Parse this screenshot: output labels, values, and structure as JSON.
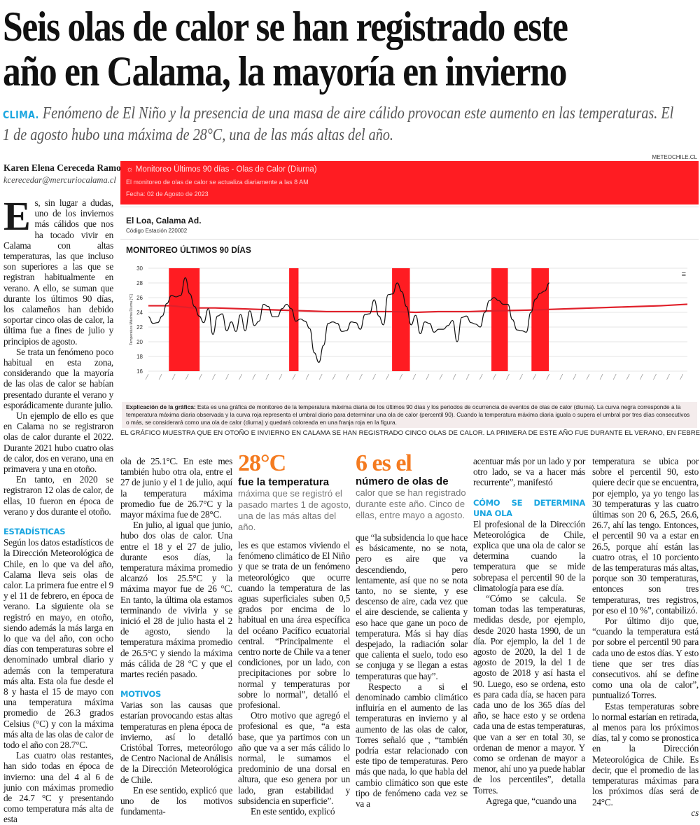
{
  "article": {
    "headline_line1": "Seis olas de calor se han registrado este",
    "headline_line2": "año en Calama, la mayoría en invierno",
    "kicker": "CLIMA.",
    "deck": "Fenómeno de El Niño y la presencia de una masa de aire cálido provocan este aumento en las temperaturas.  El 1 de agosto hubo una máxima de 28°C, una de las más altas del año.",
    "byline_name": "Karen Elena Cereceda Ramos",
    "byline_email": "kcerecedar@mercuriocalama.cl",
    "end_mark": "cs"
  },
  "graphic": {
    "source": "METEOCHILE.CL",
    "banner_icon": "sun-icon",
    "banner_title": "Monitoreo Últimos 90 días - Olas de Calor (Diurna)",
    "banner_subtitle": "El monitoreo de olas de calor se actualiza diariamente a las 8 AM",
    "banner_date": "Fecha: 02 de Agosto de 2023",
    "station_name": "El Loa, Calama Ad.",
    "station_code": "Código Estación 220002",
    "chart_title": "MONITOREO ÚLTIMOS 90 DÍAS",
    "explanation_label": "Explicación de la gráfica:",
    "explanation_text": "Esta es una gráfica de monitoreo de la temperatura máxima diaria de los últimos 90 días y los periodos de ocurrencia de eventos de olas de calor (diurna). La curva negra corresponde a la temperatura máxima diaria observada y la curva roja representa el umbral diario para determinar una ola de calor (percentil 90). Cuando la temperatura máxima diaria iguala o supera el umbral por tres días consecutivos o más, se considerará como una ola de calor (diurna) y quedará coloreada en una franja roja en la figura.",
    "caption": "EL GRÁFICO MUESTRA QUE EN OTOÑO E INVIERNO EN CALAMA SE HAN REGISTRADO CINCO OLAS DE CALOR. LA PRIMERA DE ESTE AÑO FUE DURANTE EL VERANO, EN FEBRERO."
  },
  "chart_data": {
    "type": "line",
    "title": "MONITOREO ÚLTIMOS 90 DÍAS",
    "ylabel": "Temperatura Máxima Diurna [°C]",
    "xlabel": "",
    "ylim": [
      16,
      30
    ],
    "yticks": [
      16,
      18,
      20,
      22,
      24,
      26,
      28,
      30
    ],
    "xlim_days": [
      0,
      121
    ],
    "grid": true,
    "series": [
      {
        "name": "Temperatura máxima observada",
        "color": "#111111",
        "day_range": [
          0,
          90
        ],
        "values": [
          23.4,
          22.5,
          22.6,
          23.5,
          25.2,
          26.3,
          26.1,
          26.3,
          28.7,
          26.5,
          24.8,
          23.5,
          22.6,
          24.5,
          21.0,
          23.5,
          23.8,
          21.5,
          22.7,
          21.4,
          23.7,
          21.5,
          24.2,
          22.2,
          22.8,
          25.1,
          24.8,
          23.4,
          23.4,
          24.5,
          25.1,
          24.5,
          22.8,
          23.1,
          22.8,
          21.8,
          18.5,
          17.2,
          19.5,
          22.5,
          22.7,
          22.5,
          21.4,
          21.5,
          22.7,
          22.6,
          21.7,
          23.7,
          23.8,
          25.7,
          23.5,
          22.3,
          26.4,
          26.5,
          28.0,
          26.8,
          24.8,
          22.3,
          23.6,
          21.1,
          22.7,
          22.5,
          21.3,
          21.7,
          21.7,
          22.2,
          22.9,
          20.0,
          23.3,
          23.5,
          22.6,
          22.4,
          22.0,
          24.0,
          25.6,
          26.0,
          25.6,
          25.1,
          25.1,
          23.0,
          21.6,
          21.5,
          21.3,
          24.0,
          25.8,
          26.6,
          26.9,
          28.0
        ]
      },
      {
        "name": "Umbral percentil 90",
        "color": "#e0202a",
        "points": [
          [
            0,
            24.9
          ],
          [
            5,
            24.9
          ],
          [
            10,
            24.6
          ],
          [
            15,
            24.6
          ],
          [
            20,
            24.5
          ],
          [
            25,
            24.4
          ],
          [
            30,
            24.3
          ],
          [
            35,
            24.2
          ],
          [
            40,
            24.1
          ],
          [
            55,
            24.1
          ],
          [
            60,
            24.0
          ],
          [
            65,
            24.1
          ],
          [
            72,
            24.1
          ],
          [
            77,
            24.2
          ],
          [
            85,
            24.3
          ],
          [
            90,
            24.4
          ],
          [
            95,
            24.5
          ],
          [
            100,
            24.6
          ],
          [
            105,
            24.7
          ],
          [
            110,
            24.8
          ],
          [
            115,
            24.9
          ],
          [
            121,
            25.1
          ]
        ]
      }
    ],
    "heat_wave_bands": [
      [
        4.6,
        11.5
      ],
      [
        31.6,
        33.7
      ],
      [
        54.7,
        58.7
      ],
      [
        77,
        80.7
      ],
      [
        86,
        89.9
      ]
    ],
    "band_color": "#ff1c22"
  },
  "highlights": [
    {
      "big": "28°C",
      "bold": "fue la temperatura",
      "rest": "máxima que se registró el pasado martes 1 de agosto, una de las más altas del año."
    },
    {
      "big": "6 es el",
      "bold": "número de olas de",
      "rest": " calor que se han registrado durante este año. Cinco de ellas, entre mayo a agosto."
    }
  ],
  "body": {
    "c1_drop": "E",
    "c1_p1": "s, sin lugar a dudas, uno de los inviernos más cálidos que nos ha tocado vivir en Calama con altas temperaturas, las que incluso son superiores a las que se registran habitualmente en verano. A ello, se suman que durante los últimos 90 días, los calameños han debido soportar cinco olas de calor, la última fue a fines de julio y principios de agosto.",
    "c1_p2": "Se trata un fenómeno poco habitual en esta zona, considerando que la mayoría de las olas de calor se habían presentado durante el verano y esporádicamente durante julio.",
    "c1_p3": "Un ejemplo de ello es que en Calama no se registraron olas de calor durante el 2022. Durante 2021 hubo cuatro olas de calor, dos en verano, una en primavera y una en otoño.",
    "c1_p4": "En tanto, en 2020 se registraron 12 olas de calor, de ellas, 10 fueron en época de verano y dos durante el otoño.",
    "h_estadisticas": "ESTADÍSTICAS",
    "c1_p5": "Según los datos estadísticos de la Dirección Meteorológica de Chile, en lo que va del año, Calama lleva seis olas de calor. La primera fue entre el 9 y el 11 de febrero, en época de verano. La siguiente ola se registró en mayo, en otoño, siendo además la más larga en lo que va del año, con ocho días con temperaturas sobre el denominado umbral diario y además con la temperatura más alta. Esta ola fue desde el 8 y hasta el 15 de mayo con una temperatura máxima promedio de 26.3 grados Celsius (°C) y con la máxima más alta de las olas de calor de todo el año con 28.7°C.",
    "c1_p6": "Las cuatro olas restantes, han sido todas en época de invierno: una del 4 al 6 de junio con máximas promedio de 24.7 °C y presentando como temperatura más alta de esta",
    "c2_p1": "ola de 25.1°C.  En este mes también hubo otra ola, entre el 27 de junio y el 1 de julio, aquí la temperatura máxima promedio fue de 26.7°C y la mayor máxima fue de 28°C.",
    "c2_p2": "En julio, al igual que junio, hubo dos olas de calor. Una entre el 18 y el 27 de julio, durante esos días, la temperatura máxima promedio alcanzó los 25.5°C y la máxima mayor fue de 26 °C. En tanto, la última ola estamos terminando de vivirla y se inició el 28 de julio hasta el 2 de agosto, siendo la temperatura máxima promedio de 26.5°C y siendo la máxima más cálida de 28 °C y que el martes recién pasado.",
    "h_motivos": "MOTIVOS",
    "c2_p3": "Varias son las causas que estarían provocando estas altas temperaturas en plena época de invierno, así lo detalló Cristóbal Torres, meteorólogo de Centro Nacional de Análisis de la Dirección Meteorológica de Chile.",
    "c2_p4": "En ese sentido, explicó que uno de los motivos fundamenta-",
    "c3_p1": "les es que estamos viviendo el fenómeno climático de El Niño y que se trata de un fenómeno meteorológico que ocurre cuando la temperatura de las aguas superficiales suben 0,5 grados por encima de lo habitual en una área específica del océano Pacífico ecuatorial central. “Principalmente el centro norte de Chile va a tener condiciones, por un lado, con precipitaciones por sobre lo normal y temperaturas por sobre lo normal”, detalló el profesional.",
    "c3_p2": "Otro motivo que agregó el profesional es que, “a esta base, que ya partimos con un año que va a ser más cálido lo normal, le sumamos el predominio de una dorsal en altura, que eso genera por un lado, gran estabilidad y subsidencia en superficie”.",
    "c3_p3": "En este sentido, explicó",
    "c4_p1": "que “la subsidencia lo que hace es básicamente, no se nota, pero es aire que va descendiendo, pero lentamente, así que no se nota tanto, no se siente, y ese descenso de aire, cada vez que el aire desciende, se calienta y eso hace que gane un poco de temperatura. Más si hay días despejado, la radiación solar que calienta el suelo, todo eso se conjuga y se llegan a estas temperaturas que hay”.",
    "c4_p2": "Respecto a si el denominado cambio  climático influiría en el aumento de las temperaturas en invierno y al aumento de las olas de calor, Torres señaló que , “también podría estar relacionado con este tipo de temperaturas. Pero más que nada, lo que habla del cambio climático son que este tipo de fenómeno cada vez se va a",
    "c5_p1": "acentuar más por un lado y por otro lado, se va a hacer más recurrente”, manifestó",
    "h_como": "CÓMO SE DETERMINA UNA OLA",
    "c5_p2": "El profesional de la Dirección Meteorológica de Chile, explica que una ola de calor se determina cuando la temperatura que se mide sobrepasa el percentil 90 de la climatología para ese día.",
    "c5_p3": "“Cómo se calcula. Se toman todas las temperaturas, medidas desde, por ejemplo, desde 2020 hasta 1990, de un día. Por ejemplo, la del 1 de agosto de 2020, la del 1 de agosto de 2019, la del 1 de agosto de 2018 y así hasta el 90. Luego, eso se ordena, esto es para cada día, se hacen para cada uno de los 365 días del año, se hace esto y se ordena cada una de estas temperaturas, que van a ser en total 30, se ordenan de menor a mayor. Y como se ordenan de mayor a menor, ahí uno ya puede hablar de los percentiles”, detalla Torres.",
    "c5_p4": "Agrega que, “cuando una",
    "c6_p1": "temperatura se ubica por sobre el percentil 90, esto quiere decir que se encuentra, por ejemplo, ya yo tengo las 30 temperaturas y las cuatro últimas son 20 6, 26.5, 26.6, 26.7, ahí las tengo. Entonces, el percentil 90 va a estar en 26.5, porque ahí están las cuatro otras, el 10 porciento de las temperaturas más altas, porque son 30 temperaturas, entonces son tres temperaturas, tres registros, por eso el 10 %”, contabilizó.",
    "c6_p2": "Por último dijo que, “cuando la temperatura está por sobre el percentil 90 para cada uno de estos días. Y esto tiene que ser tres días consecutivos. ahí se define como una ola de calor”, puntualizó Torres.",
    "c6_p3": "Estas temperaturas sobre lo normal estarían en retirada, al menos para los próximos días, tal y como se pronostica en la Dirección Meteorológica de Chile. Es decir, que el promedio de las temperaturas máximas para los próximos días será de 24°C."
  }
}
